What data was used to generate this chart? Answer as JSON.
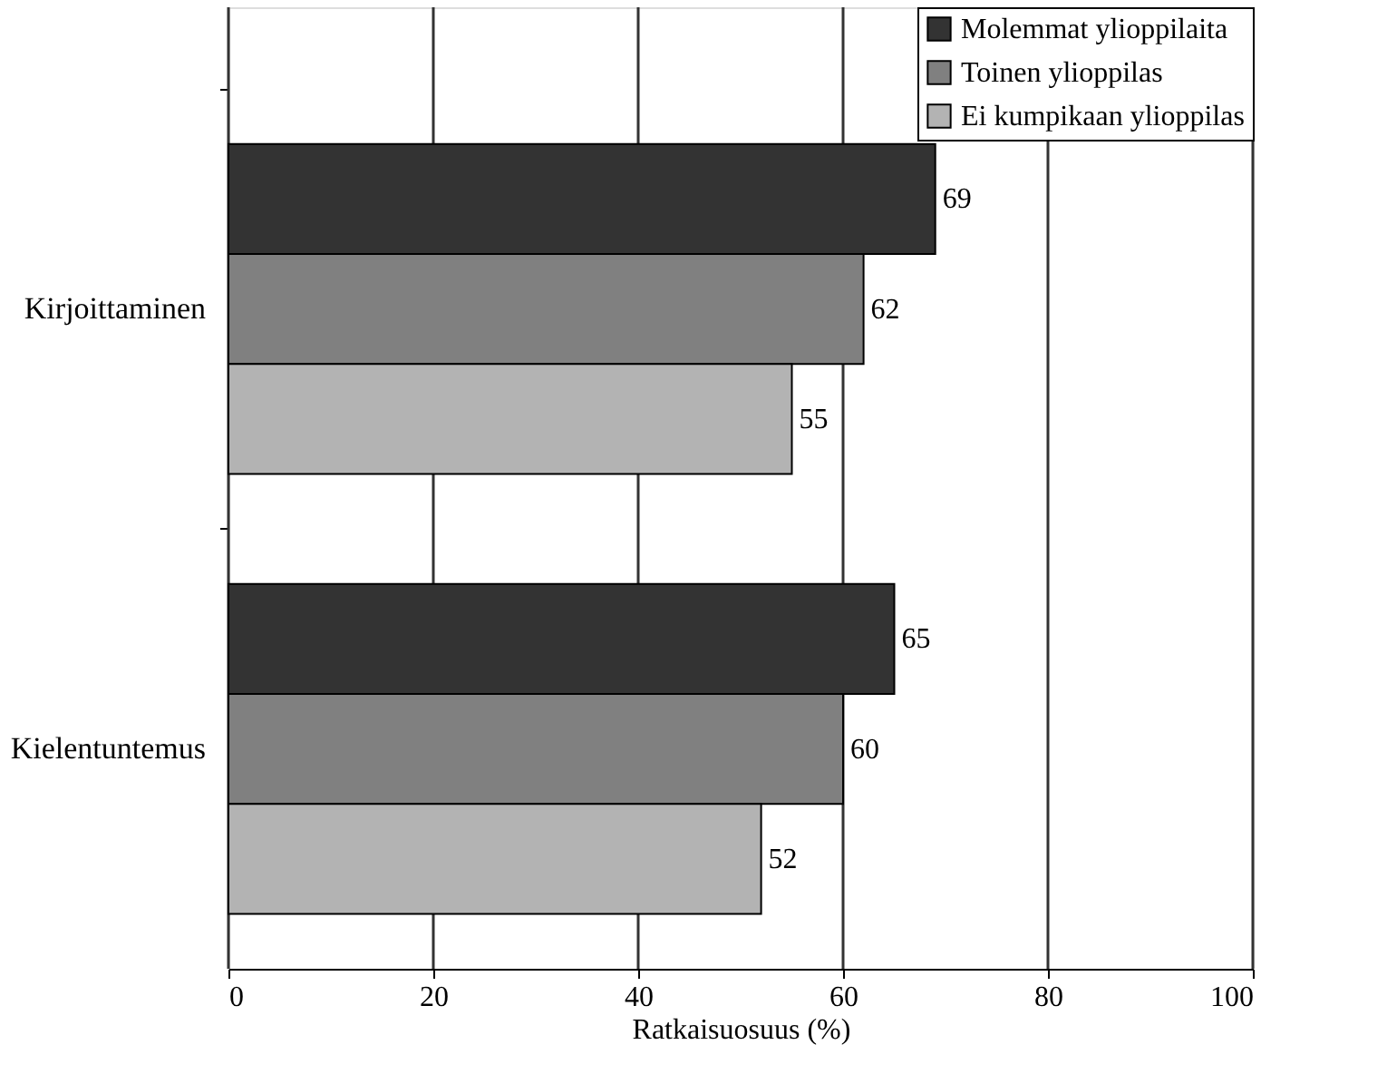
{
  "chart_data": {
    "type": "bar",
    "orientation": "horizontal",
    "xlabel": "Ratkaisuosuus (%)",
    "categories": [
      "Kirjoittaminen",
      "Kielentuntemus"
    ],
    "series": [
      {
        "name": "Molemmat ylioppilaita",
        "color": "#333333",
        "values": [
          69,
          65
        ]
      },
      {
        "name": "Toinen ylioppilas",
        "color": "#808080",
        "values": [
          62,
          60
        ]
      },
      {
        "name": "Ei kumpikaan ylioppilas",
        "color": "#b3b3b3",
        "values": [
          55,
          52
        ]
      }
    ],
    "xlim": [
      0,
      100
    ],
    "xticks": [
      0,
      20,
      40,
      60,
      80,
      100
    ],
    "grid": "x",
    "legend": "top right",
    "data_labels": true
  }
}
